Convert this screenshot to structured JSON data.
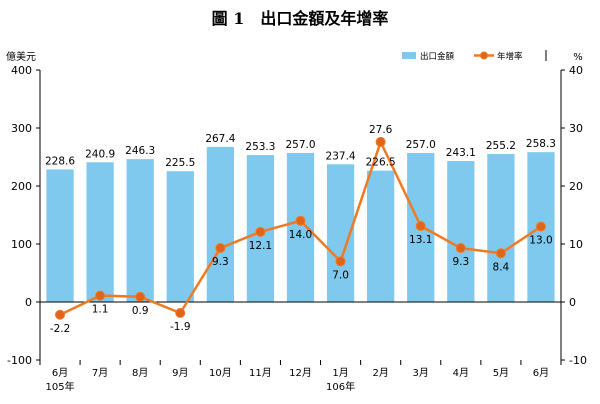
{
  "chart_data": {
    "type": "bar+line",
    "title": "圖 1　出口金額及年增率",
    "left_unit": "億美元",
    "right_unit": "%",
    "categories": [
      "6月",
      "7月",
      "8月",
      "9月",
      "10月",
      "11月",
      "12月",
      "1月",
      "2月",
      "3月",
      "4月",
      "5月",
      "6月"
    ],
    "year_labels": [
      {
        "index": 0,
        "text": "105年"
      },
      {
        "index": 7,
        "text": "106年"
      }
    ],
    "series": [
      {
        "name": "出口金額",
        "kind": "bar",
        "axis": "left",
        "values": [
          228.6,
          240.9,
          246.3,
          225.5,
          267.4,
          253.3,
          257.0,
          237.4,
          226.5,
          257.0,
          243.1,
          255.2,
          258.3
        ],
        "value_labels": [
          "228.6",
          "240.9",
          "246.3",
          "225.5",
          "267.4",
          "253.3",
          "257.0",
          "237.4",
          "226.5",
          "257.0",
          "243.1",
          "255.2",
          "258.3"
        ]
      },
      {
        "name": "年增率",
        "kind": "line",
        "axis": "right",
        "values": [
          -2.2,
          1.1,
          0.9,
          -1.9,
          9.3,
          12.1,
          14.0,
          7.0,
          27.6,
          13.1,
          9.3,
          8.4,
          13.0
        ],
        "value_labels": [
          "-2.2",
          "1.1",
          "0.9",
          "-1.9",
          "9.3",
          "12.1",
          "14.0",
          "7.0",
          "27.6",
          "13.1",
          "9.3",
          "8.4",
          "13.0"
        ]
      }
    ],
    "ylim_left": [
      -100,
      400
    ],
    "yticks_left": [
      "-100",
      "0",
      "100",
      "200",
      "300",
      "400"
    ],
    "ylim_right": [
      -10,
      40
    ],
    "yticks_right": [
      "-10",
      "0",
      "10",
      "20",
      "30",
      "40"
    ],
    "grid": false,
    "legend_position": "top-right",
    "colors": {
      "bar": "#7FC8EE",
      "line": "#F07A24",
      "marker_fill": "#E0651A"
    }
  }
}
